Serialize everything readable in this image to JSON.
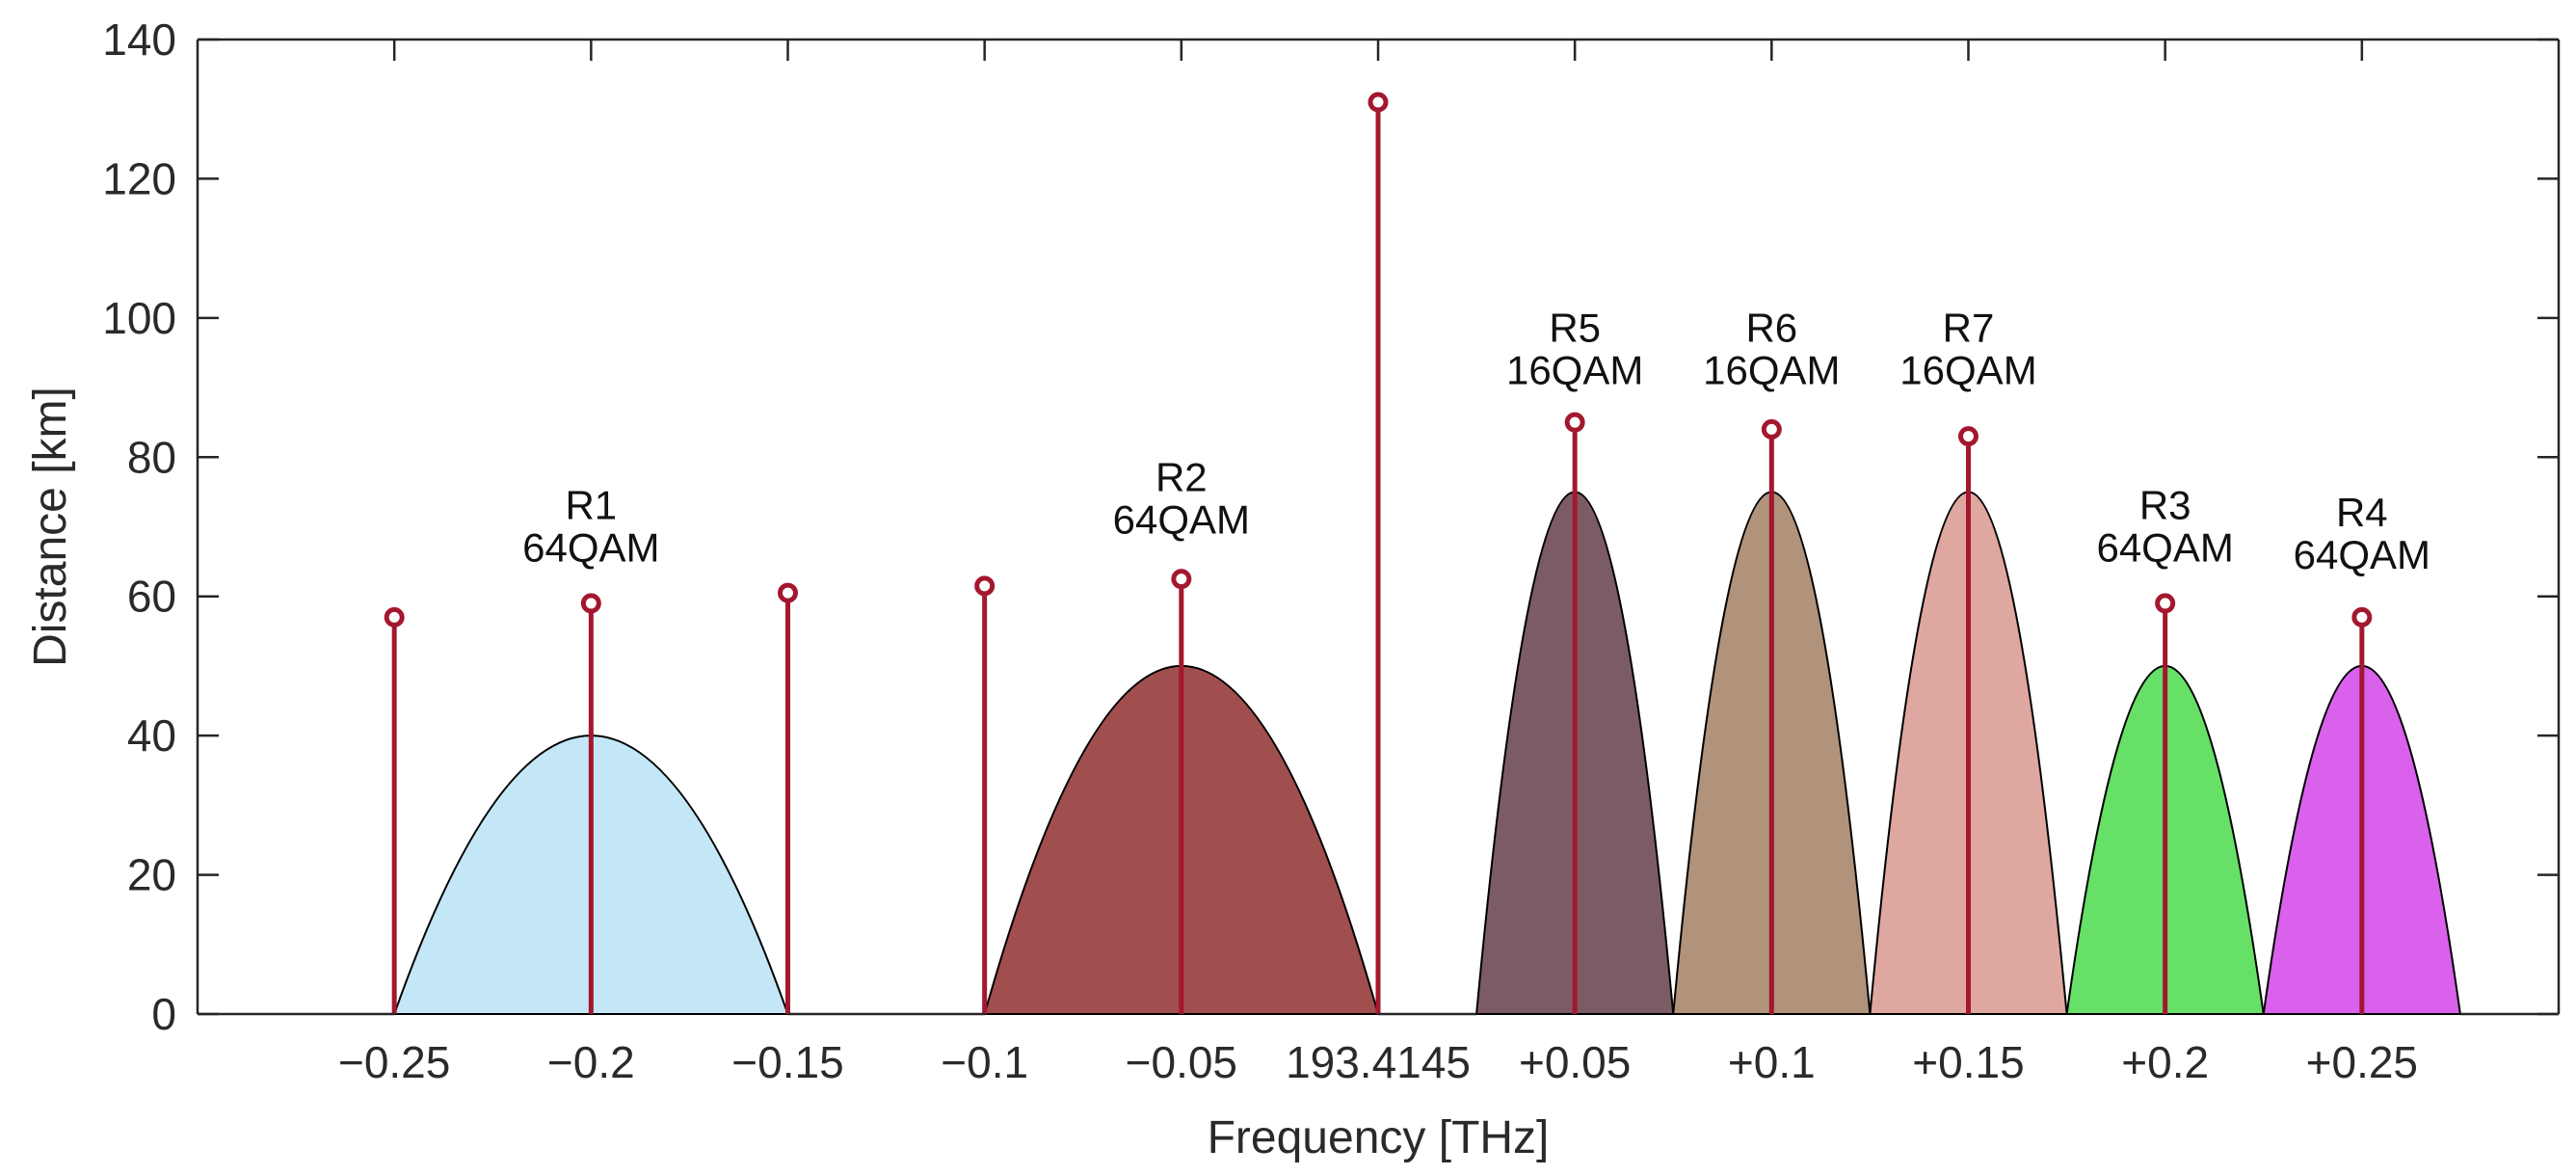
{
  "chart_data": {
    "type": "stem-with-areas",
    "title": "",
    "xlabel": "Frequency [THz]",
    "ylabel": "Distance [km]",
    "ylim": [
      0,
      140
    ],
    "yticks": [
      0,
      20,
      40,
      60,
      80,
      100,
      120,
      140
    ],
    "grid": false,
    "x_ticks": [
      {
        "pos": -0.25,
        "label": "−0.25"
      },
      {
        "pos": -0.2,
        "label": "−0.2"
      },
      {
        "pos": -0.15,
        "label": "−0.15"
      },
      {
        "pos": -0.1,
        "label": "−0.1"
      },
      {
        "pos": -0.05,
        "label": "−0.05"
      },
      {
        "pos": 0,
        "label": "193.4145",
        "color": "#d9541f"
      },
      {
        "pos": 0.05,
        "label": "+0.05"
      },
      {
        "pos": 0.1,
        "label": "+0.1"
      },
      {
        "pos": 0.15,
        "label": "+0.15"
      },
      {
        "pos": 0.2,
        "label": "+0.2"
      },
      {
        "pos": 0.25,
        "label": "+0.25"
      }
    ],
    "areas": [
      {
        "name": "R1",
        "format": "64QAM",
        "x0": -0.25,
        "x1": -0.15,
        "peak": 40,
        "color": "#c3e7f6"
      },
      {
        "name": "R2",
        "format": "64QAM",
        "x0": -0.1,
        "x1": 0,
        "peak": 50,
        "color": "#a14e4f"
      },
      {
        "name": "R5",
        "format": "16QAM",
        "x0": 0.025,
        "x1": 0.075,
        "peak": 75,
        "color": "#7c5c64"
      },
      {
        "name": "R6",
        "format": "16QAM",
        "x0": 0.075,
        "x1": 0.125,
        "peak": 75,
        "color": "#b1927a"
      },
      {
        "name": "R7",
        "format": "16QAM",
        "x0": 0.125,
        "x1": 0.175,
        "peak": 75,
        "color": "#dea7a0"
      },
      {
        "name": "R3",
        "format": "64QAM",
        "x0": 0.175,
        "x1": 0.225,
        "peak": 50,
        "color": "#66e066"
      },
      {
        "name": "R4",
        "format": "64QAM",
        "x0": 0.225,
        "x1": 0.275,
        "peak": 50,
        "color": "#d961ec"
      }
    ],
    "stems": {
      "color": "#a3172f",
      "x": [
        -0.25,
        -0.2,
        -0.15,
        -0.1,
        -0.05,
        0,
        0.05,
        0.1,
        0.15,
        0.2,
        0.25
      ],
      "y": [
        57,
        59,
        60.5,
        61.5,
        62.5,
        131,
        85,
        84,
        83,
        59,
        57
      ]
    },
    "annotations": [
      {
        "name": "R1",
        "format": "64QAM",
        "x": -0.2,
        "y": 65
      },
      {
        "name": "R2",
        "format": "64QAM",
        "x": -0.05,
        "y": 69
      },
      {
        "name": "R5",
        "format": "16QAM",
        "x": 0.05,
        "y": 90.5
      },
      {
        "name": "R6",
        "format": "16QAM",
        "x": 0.1,
        "y": 90.5
      },
      {
        "name": "R7",
        "format": "16QAM",
        "x": 0.15,
        "y": 90.5
      },
      {
        "name": "R3",
        "format": "64QAM",
        "x": 0.2,
        "y": 65
      },
      {
        "name": "R4",
        "format": "64QAM",
        "x": 0.25,
        "y": 64
      }
    ]
  }
}
